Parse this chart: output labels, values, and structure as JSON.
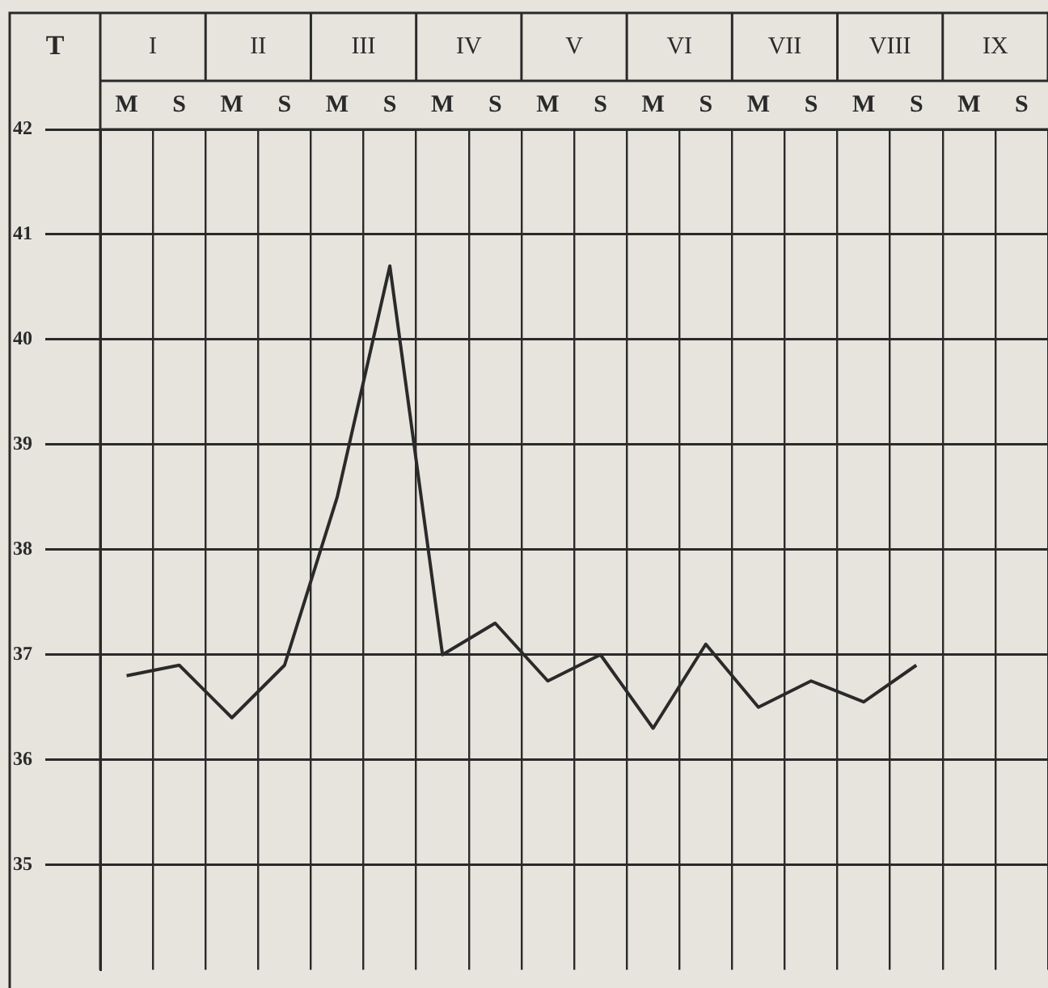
{
  "chart_data": {
    "type": "line",
    "ylabel": "T",
    "categories": [
      "M",
      "S",
      "M",
      "S",
      "M",
      "S",
      "M",
      "S",
      "M",
      "S",
      "M",
      "S",
      "M",
      "S",
      "M",
      "S",
      "M",
      "S"
    ],
    "annotations": [
      "I",
      "II",
      "III",
      "IV",
      "V",
      "VI",
      "VII",
      "VIII",
      "IX"
    ],
    "series": [
      {
        "color": "#2a2a2a",
        "values": [
          36.8,
          36.9,
          36.4,
          36.9,
          38.5,
          40.7,
          37.0,
          37.3,
          36.75,
          37.0,
          36.3,
          37.1,
          36.5,
          36.75,
          36.55,
          36.9,
          null,
          null
        ]
      }
    ],
    "ylim": [
      34,
      42
    ],
    "yticks": [
      35,
      36,
      37,
      38,
      39,
      40,
      41,
      42
    ],
    "grid": true,
    "legend": false,
    "marker": "none",
    "line_style": "solid"
  }
}
